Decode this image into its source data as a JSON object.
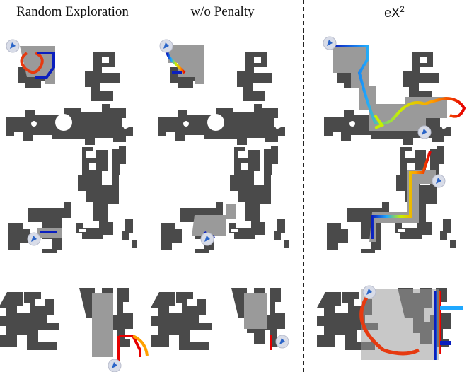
{
  "columns": [
    {
      "title": "Random Exploration"
    },
    {
      "title": "w/o Penalty"
    },
    {
      "title_base": "eX",
      "title_sup": "2"
    }
  ],
  "rows": [
    {
      "map": "map-a"
    },
    {
      "map": "map-b"
    },
    {
      "map": "map-c"
    }
  ],
  "colors": {
    "obstacle": "#4a4a4a",
    "explored_area": "#9a9a9a",
    "trajectory_start": "#0a1fbf",
    "trajectory_end": "#e60000",
    "agent_marker": "#d8dce8",
    "agent_arrow": "#2a64c8",
    "divider": "#222222"
  }
}
